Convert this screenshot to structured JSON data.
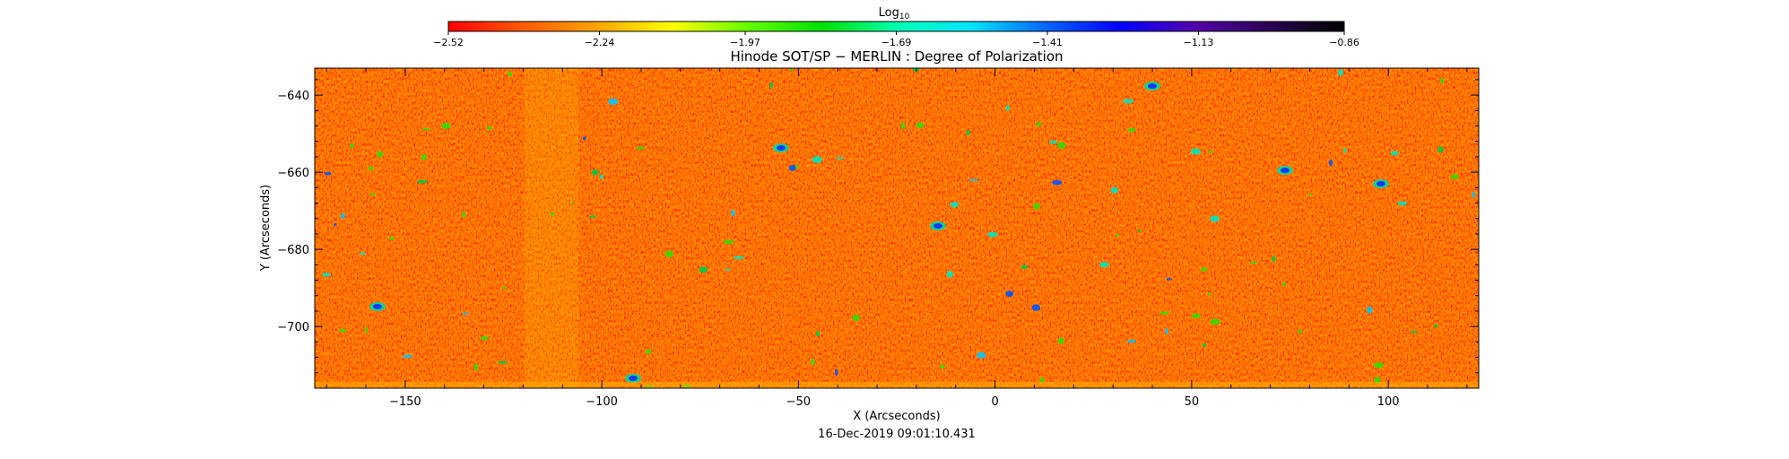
{
  "chart_data": {
    "type": "heatmap",
    "title": "Hinode SOT/SP − MERLIN : Degree of Polarization",
    "xlabel": "X (Arcseconds)",
    "ylabel": "Y (Arcseconds)",
    "xlim": [
      -173,
      123
    ],
    "ylim": [
      -716,
      -633
    ],
    "x_ticks": [
      -150,
      -100,
      -50,
      0,
      50,
      100
    ],
    "x_tick_labels": [
      "−150",
      "−100",
      "−50",
      "0",
      "50",
      "100"
    ],
    "y_ticks": [
      -640,
      -660,
      -680,
      -700
    ],
    "y_tick_labels": [
      "−640",
      "−660",
      "−680",
      "−700"
    ],
    "timestamp": "16-Dec-2019 09:01:10.431",
    "colorbar": {
      "label_base": "Log",
      "label_sub": "10",
      "range": [
        -2.52,
        -0.86
      ],
      "tick_values": [
        -2.52,
        -2.24,
        -1.97,
        -1.69,
        -1.41,
        -1.13,
        -0.86
      ],
      "tick_labels": [
        "−2.52",
        "−2.24",
        "−1.97",
        "−1.69",
        "−1.41",
        "−1.13",
        "−0.86"
      ],
      "colors": [
        "#ff0000",
        "#ff5a00",
        "#ffa500",
        "#ffff00",
        "#66ff00",
        "#00e000",
        "#00ffb0",
        "#00e5ff",
        "#0066ff",
        "#0000ff",
        "#5500aa",
        "#2a0055",
        "#000000"
      ]
    },
    "notes": "2D map of log10 degree of polarization; field is mostly -2.5 to -2.2 (red/orange/yellow) with scattered green/cyan/blue patches near -1.9 to -1.3."
  }
}
